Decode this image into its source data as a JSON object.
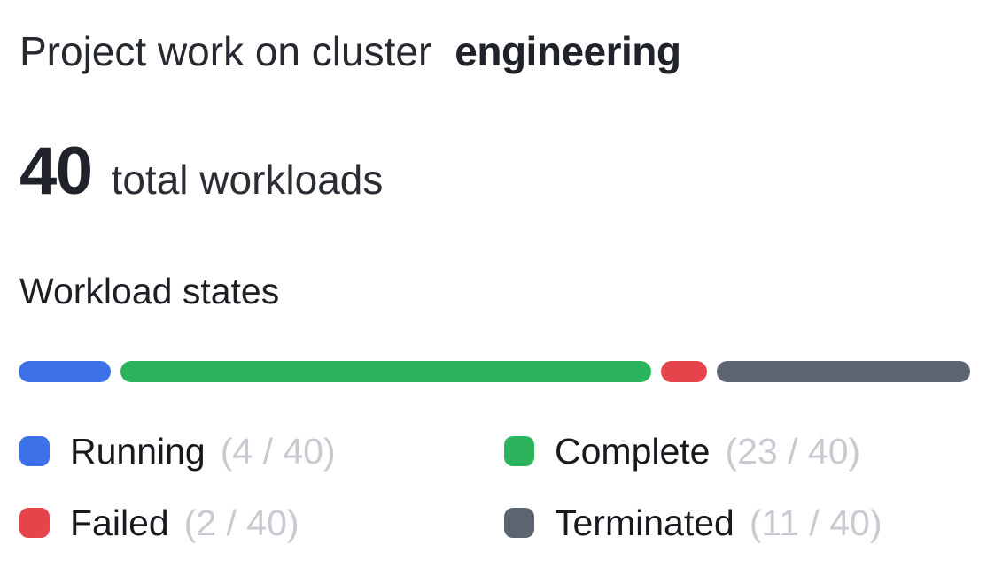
{
  "header": {
    "title_prefix": "Project work on cluster",
    "cluster_name": "engineering"
  },
  "summary": {
    "total": "40",
    "label": "total workloads"
  },
  "section_label": "Workload states",
  "legend": {
    "items": [
      {
        "label": "Running",
        "count": "(4 / 40)",
        "color": "#3d71e7"
      },
      {
        "label": "Complete",
        "count": "(23 / 40)",
        "color": "#2cb45c"
      },
      {
        "label": "Failed",
        "count": "(2 / 40)",
        "color": "#e7434b"
      },
      {
        "label": "Terminated",
        "count": "(11 / 40)",
        "color": "#5c6470"
      }
    ]
  },
  "chart_data": {
    "type": "bar",
    "title": "Workload states",
    "subtitle": "40 total workloads",
    "orientation": "horizontal-segmented",
    "categories": [
      "Running",
      "Complete",
      "Failed",
      "Terminated"
    ],
    "values": [
      4,
      23,
      2,
      11
    ],
    "total": 40,
    "colors": [
      "#3d71e7",
      "#2cb45c",
      "#e7434b",
      "#5c6470"
    ],
    "legend_position": "bottom",
    "grid": false
  }
}
